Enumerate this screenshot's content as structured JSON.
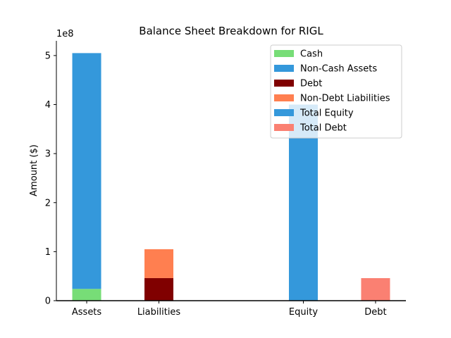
{
  "chart_data": {
    "type": "bar",
    "title": "Balance Sheet Breakdown for RIGL",
    "xlabel": "",
    "ylabel": "Amount ($)",
    "y_offset_label": "1e8",
    "ylim": [
      0,
      530000000
    ],
    "y_ticks": [
      0,
      100000000,
      200000000,
      300000000,
      400000000,
      500000000
    ],
    "y_tick_labels": [
      "0",
      "1",
      "2",
      "3",
      "4",
      "5"
    ],
    "categories": [
      "Assets",
      "Liabilities",
      "Equity",
      "Debt"
    ],
    "category_positions": [
      0,
      1,
      3,
      4
    ],
    "legend_position": "upper right",
    "series": [
      {
        "name": "Cash",
        "color": "#77dd77",
        "category": "Assets",
        "bottom": 0,
        "value": 24000000
      },
      {
        "name": "Non-Cash Assets",
        "color": "#3498db",
        "category": "Assets",
        "bottom": 24000000,
        "value": 481000000
      },
      {
        "name": "Debt",
        "color": "#800000",
        "category": "Liabilities",
        "bottom": 0,
        "value": 46000000
      },
      {
        "name": "Non-Debt Liabilities",
        "color": "#ff7f50",
        "category": "Liabilities",
        "bottom": 46000000,
        "value": 59000000
      },
      {
        "name": "Total Equity",
        "color": "#3498db",
        "category": "Equity",
        "bottom": 0,
        "value": 400000000
      },
      {
        "name": "Total Debt",
        "color": "#fa8072",
        "category": "Debt",
        "bottom": 0,
        "value": 46000000
      }
    ]
  }
}
